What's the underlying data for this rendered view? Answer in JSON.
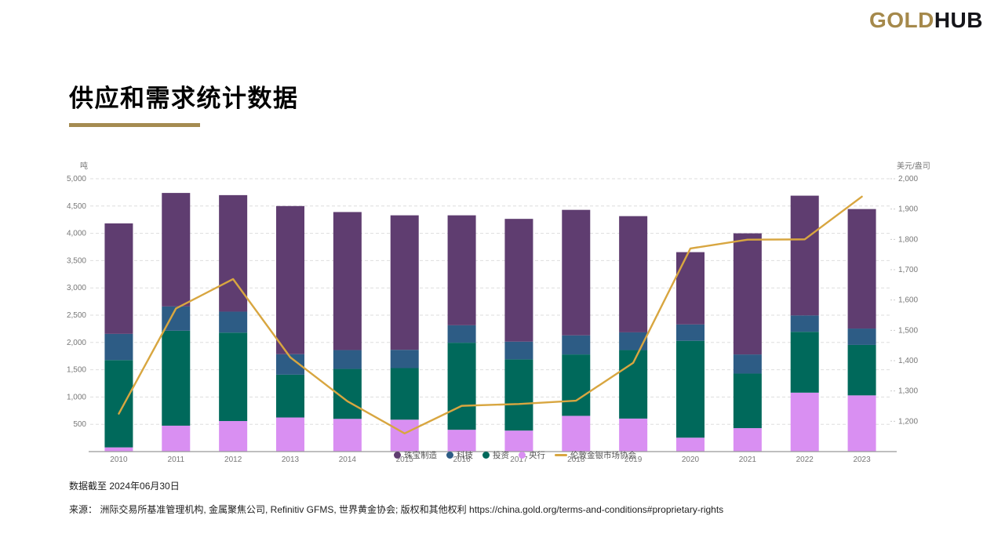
{
  "logo": {
    "gold": "GOLD",
    "hub": "HUB"
  },
  "title": {
    "text": "供应和需求统计数据"
  },
  "chart_data": {
    "type": "bar",
    "subtype": "stacked-bars-with-line",
    "categories": [
      "2010",
      "2011",
      "2012",
      "2013",
      "2014",
      "2015",
      "2016",
      "2017",
      "2018",
      "2019",
      "2020",
      "2021",
      "2022",
      "2023"
    ],
    "left_axis": {
      "title": "吨",
      "min": 0,
      "max": 5000,
      "tick_step": 500
    },
    "right_axis": {
      "title": "美元/盎司",
      "min": 1100,
      "max": 2000,
      "tick_min": 1200,
      "tick_step": 100
    },
    "grid": "dashed-horizontal",
    "legend_position": "bottom-center-overlapping-x-axis",
    "series": [
      {
        "name": "央行",
        "color": "#D98FF2",
        "values": [
          77,
          475,
          560,
          625,
          600,
          585,
          400,
          385,
          655,
          605,
          255,
          430,
          1080,
          1030
        ]
      },
      {
        "name": "投资",
        "color": "#00695B",
        "values": [
          1600,
          1740,
          1620,
          785,
          915,
          945,
          1595,
          1305,
          1125,
          1255,
          1775,
          1000,
          1115,
          925
        ]
      },
      {
        "name": "科技",
        "color": "#2D5C85",
        "values": [
          480,
          445,
          385,
          375,
          345,
          335,
          320,
          325,
          350,
          325,
          300,
          350,
          300,
          300
        ]
      },
      {
        "name": "珠宝制造",
        "color": "#5F3D70",
        "values": [
          2025,
          2080,
          2135,
          2715,
          2530,
          2465,
          2015,
          2250,
          2300,
          2130,
          1325,
          2220,
          2195,
          2190
        ]
      }
    ],
    "stack_order": "bottom-to-top as listed",
    "line": {
      "name": "伦敦金银市场协会",
      "color": "#D8A640",
      "axis": "right",
      "values": [
        1225,
        1572,
        1669,
        1411,
        1266,
        1160,
        1251,
        1257,
        1268,
        1393,
        1770,
        1799,
        1800,
        1941
      ]
    }
  },
  "footnotes": {
    "as_of": "数据截至 2024年06月30日",
    "source": "来源：  洲际交易所基准管理机构, 金属聚焦公司, Refinitiv GFMS, 世界黄金协会; 版权和其他权利 https://china.gold.org/terms-and-conditions#proprietary-rights"
  }
}
